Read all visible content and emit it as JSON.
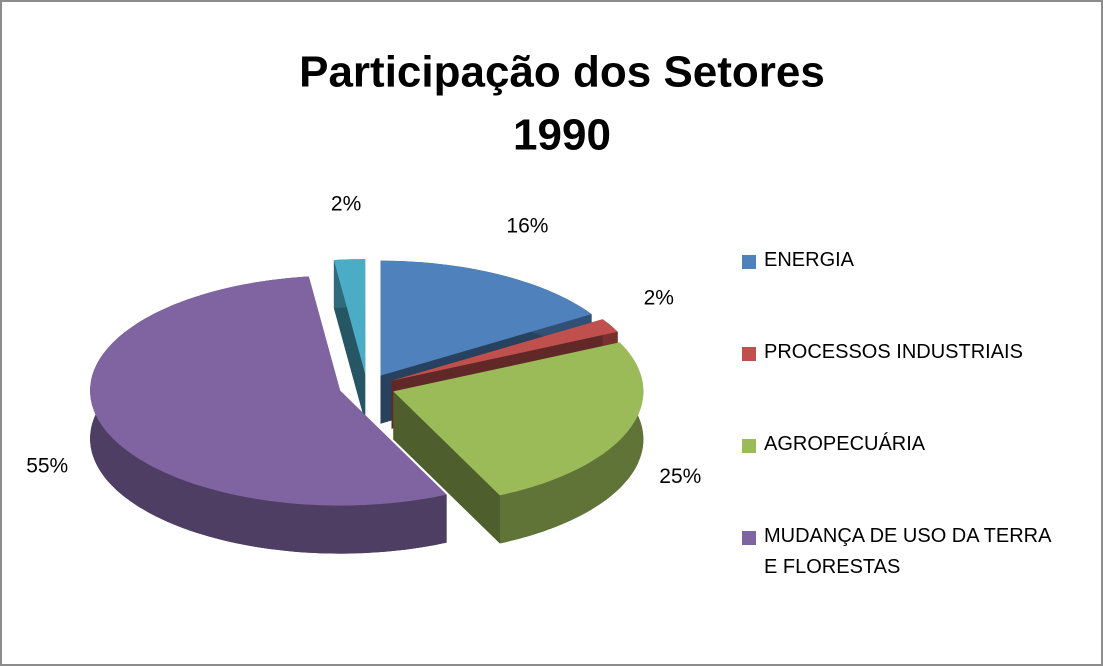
{
  "chart_data": {
    "type": "pie3d",
    "title": [
      "Participação dos Setores",
      "1990"
    ],
    "categories": [
      "ENERGIA",
      "PROCESSOS INDUSTRIAIS",
      "AGROPECUÁRIA",
      "MUDANÇA DE USO DA TERRA E FLORESTAS",
      null
    ],
    "values": [
      16,
      2,
      25,
      55,
      2
    ],
    "value_labels": [
      "16%",
      "2%",
      "25%",
      "55%",
      "2%"
    ],
    "colors": [
      "#4f81bd",
      "#c0504d",
      "#9bbb59",
      "#8064a2",
      "#4bacc6"
    ],
    "legend": "right"
  }
}
